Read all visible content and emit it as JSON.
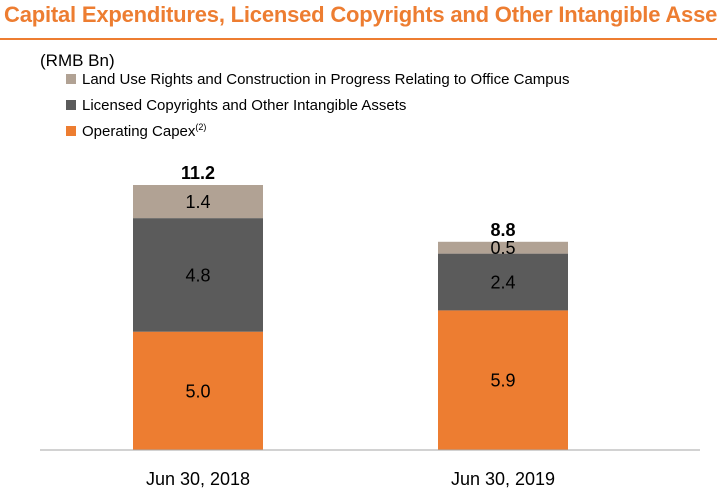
{
  "title": "Capital Expenditures, Licensed Copyrights and Other Intangible Assets",
  "colors": {
    "title": "#ED7D31",
    "land_use": "#B1A294",
    "licensed": "#5B5B5B",
    "operating": "#ED7D31"
  },
  "chart_data": {
    "type": "bar",
    "stacked": true,
    "unit_label": "(RMB Bn)",
    "categories": [
      "Jun 30, 2018",
      "Jun 30, 2019"
    ],
    "series": [
      {
        "name": "Operating Capex",
        "superscript": "(2)",
        "values": [
          5.0,
          5.9
        ],
        "labels": [
          "5.0",
          "5.9"
        ]
      },
      {
        "name": "Licensed Copyrights and Other Intangible Assets",
        "values": [
          4.8,
          2.4
        ],
        "labels": [
          "4.8",
          "2.4"
        ]
      },
      {
        "name": "Land Use Rights and Construction in Progress Relating to Office Campus",
        "values": [
          1.4,
          0.5
        ],
        "labels": [
          "1.4",
          "0.5"
        ]
      }
    ],
    "totals": [
      11.2,
      8.8
    ],
    "total_labels": [
      "11.2",
      "8.8"
    ],
    "legend_order": [
      "Land Use Rights and Construction in Progress Relating to Office Campus",
      "Licensed Copyrights and Other Intangible Assets",
      "Operating Capex"
    ],
    "legend_position": "top-left",
    "grid": false,
    "ylim": [
      0,
      11.2
    ]
  }
}
